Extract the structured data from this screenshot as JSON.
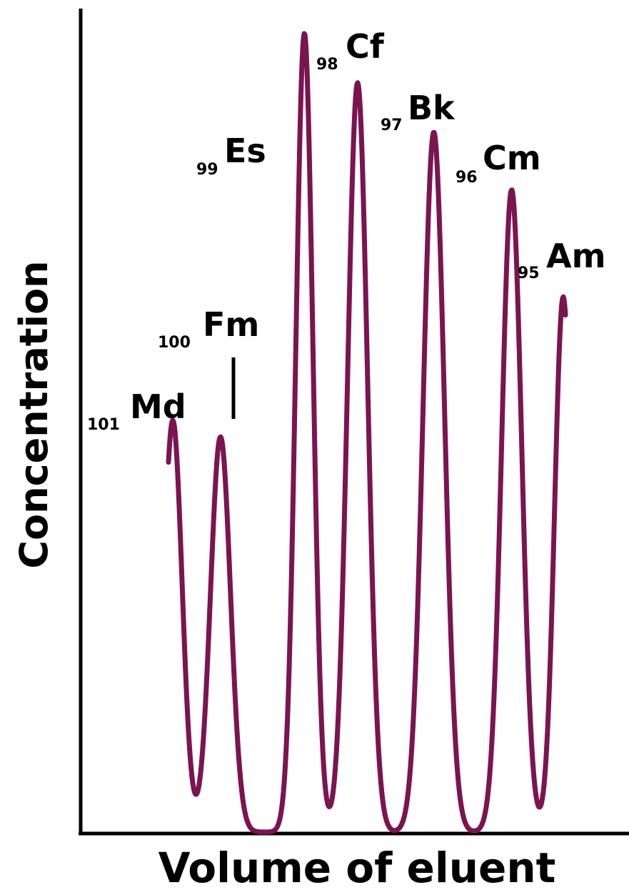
{
  "chart_data": {
    "type": "line",
    "xlabel": "Volume of eluent",
    "ylabel": "Concentration",
    "curve_color": "#7b1450",
    "grid": false,
    "legend": "none",
    "peaks": [
      {
        "number": "101",
        "symbol": "Md",
        "rel_position": 0.168,
        "rel_height": 0.5
      },
      {
        "number": "100",
        "symbol": "Fm",
        "rel_position": 0.255,
        "rel_height": 0.48
      },
      {
        "number": "99",
        "symbol": "Es",
        "rel_position": 0.408,
        "rel_height": 0.97
      },
      {
        "number": "98",
        "symbol": "Cf",
        "rel_position": 0.505,
        "rel_height": 0.91
      },
      {
        "number": "97",
        "symbol": "Bk",
        "rel_position": 0.644,
        "rel_height": 0.85
      },
      {
        "number": "96",
        "symbol": "Cm",
        "rel_position": 0.786,
        "rel_height": 0.78
      },
      {
        "number": "95",
        "symbol": "Am",
        "rel_position": 0.88,
        "rel_height": 0.65
      }
    ],
    "fm_marker": true
  }
}
